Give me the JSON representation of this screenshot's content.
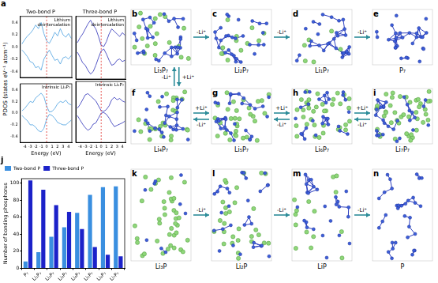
{
  "pdos_panel": "a",
  "pdos_ylabel": "PDOS (states eV⁻¹ atom⁻¹)",
  "chart_data": [
    {
      "type": "line",
      "title": "Two-bond P",
      "annotation": [
        "Lithium",
        "deintercalation"
      ],
      "x": [
        -4.5,
        -4,
        -3.5,
        -3,
        -2.5,
        -2,
        -1.5,
        -1,
        -0.5,
        0,
        0.5,
        1,
        1.5,
        2,
        2.5,
        3,
        3.5,
        4,
        4.5
      ],
      "series": [
        {
          "color": "#4a9fe0",
          "values": [
            0.05,
            0.12,
            0.18,
            0.22,
            0.28,
            0.36,
            0.3,
            0.4,
            0.22,
            0.1,
            0.06,
            0.14,
            0.24,
            0.18,
            0.3,
            0.2,
            0.16,
            0.22,
            0.14
          ]
        },
        {
          "color": "#4a9fe0",
          "values": [
            -0.05,
            -0.1,
            -0.16,
            -0.24,
            -0.26,
            -0.34,
            -0.32,
            -0.38,
            -0.2,
            -0.12,
            -0.05,
            -0.14,
            -0.22,
            -0.2,
            -0.28,
            -0.18,
            -0.16,
            -0.2,
            -0.14
          ]
        }
      ],
      "xlim": [
        -4.8,
        4.6
      ],
      "xticks": [
        -4,
        -3,
        -2,
        -1,
        0,
        1,
        2,
        3,
        4
      ],
      "ylim": [
        -0.5,
        0.5
      ],
      "yticks": [
        -0.4,
        -0.2,
        {
          "value": 0,
          "label": "0.0"
        },
        0.2,
        0.4
      ],
      "fermi_level": 0,
      "tick_labels": "y",
      "grid": false
    },
    {
      "type": "line",
      "title": "Three-bond P",
      "annotation": [
        "Lithium",
        "deintercalation"
      ],
      "x": [
        -4.5,
        -4,
        -3.5,
        -3,
        -2.5,
        -2,
        -1.5,
        -1,
        -0.5,
        0,
        0.5,
        1,
        1.5,
        2,
        2.5,
        3,
        3.5,
        4,
        4.5
      ],
      "series": [
        {
          "color": "#2b2fb8",
          "values": [
            0.08,
            0.16,
            0.22,
            0.3,
            0.38,
            0.44,
            0.36,
            0.3,
            0.18,
            0.04,
            0.02,
            0.1,
            0.22,
            0.3,
            0.26,
            0.22,
            0.18,
            0.24,
            0.2
          ]
        },
        {
          "color": "#2b2fb8",
          "values": [
            -0.07,
            -0.15,
            -0.24,
            -0.28,
            -0.36,
            -0.42,
            -0.38,
            -0.28,
            -0.16,
            -0.05,
            -0.02,
            -0.1,
            -0.2,
            -0.28,
            -0.26,
            -0.2,
            -0.18,
            -0.22,
            -0.2
          ]
        }
      ],
      "xlim": [
        -4.8,
        4.6
      ],
      "xticks": [
        -4,
        -3,
        -2,
        -1,
        0,
        1,
        2,
        3,
        4
      ],
      "ylim": [
        -0.5,
        0.5
      ],
      "yticks": [
        -0.4,
        -0.2,
        {
          "value": 0,
          "label": "0.0"
        },
        0.2,
        0.4
      ],
      "fermi_level": 0,
      "tick_labels": false,
      "grid": false
    },
    {
      "type": "line",
      "xlabel": "Energy (eV)",
      "annotation": [
        "Intrinsic Li₃P₇"
      ],
      "x": [
        -4.5,
        -4,
        -3.5,
        -3,
        -2.5,
        -2,
        -1.5,
        -1,
        -0.5,
        0,
        0.5,
        1,
        1.5,
        2,
        2.5,
        3,
        3.5,
        4,
        4.5
      ],
      "series": [
        {
          "color": "#4a9fe0",
          "values": [
            0.04,
            0.08,
            0.14,
            0.2,
            0.18,
            0.26,
            0.3,
            0.34,
            0.28,
            0.12,
            0.02,
            0.03,
            0.08,
            0.16,
            0.2,
            0.18,
            0.22,
            0.16,
            0.14
          ]
        },
        {
          "color": "#4a9fe0",
          "values": [
            -0.04,
            -0.09,
            -0.13,
            -0.2,
            -0.2,
            -0.24,
            -0.3,
            -0.32,
            -0.26,
            -0.1,
            -0.02,
            -0.04,
            -0.09,
            -0.16,
            -0.18,
            -0.2,
            -0.2,
            -0.16,
            -0.12
          ]
        }
      ],
      "xlim": [
        -4.8,
        4.6
      ],
      "xticks": [
        -4,
        -3,
        -2,
        -1,
        0,
        1,
        2,
        3,
        4
      ],
      "ylim": [
        -0.5,
        0.5
      ],
      "yticks": [
        -0.4,
        -0.2,
        {
          "value": 0,
          "label": "0.0"
        },
        0.2,
        0.4
      ],
      "fermi_level": 0,
      "tick_labels": true,
      "grid": false
    },
    {
      "type": "line",
      "xlabel": "Energy (eV)",
      "annotation": [
        "Intrinsic Li₃P₇"
      ],
      "x": [
        -4.5,
        -4,
        -3.5,
        -3,
        -2.5,
        -2,
        -1.5,
        -1,
        -0.5,
        0,
        0.5,
        1,
        1.5,
        2,
        2.5,
        3,
        3.5,
        4,
        4.5
      ],
      "series": [
        {
          "color": "#2b2fb8",
          "values": [
            0.06,
            0.12,
            0.2,
            0.28,
            0.3,
            0.26,
            0.22,
            0.18,
            0.1,
            0.02,
            0.01,
            0.04,
            0.1,
            0.2,
            0.24,
            0.2,
            0.22,
            0.18,
            0.16
          ]
        },
        {
          "color": "#2b2fb8",
          "values": [
            -0.06,
            -0.13,
            -0.2,
            -0.26,
            -0.3,
            -0.27,
            -0.2,
            -0.18,
            -0.1,
            -0.02,
            -0.01,
            -0.04,
            -0.1,
            -0.18,
            -0.24,
            -0.22,
            -0.2,
            -0.18,
            -0.15
          ]
        }
      ],
      "xlim": [
        -4.8,
        4.6
      ],
      "xticks": [
        -4,
        -3,
        -2,
        -1,
        0,
        1,
        2,
        3,
        4
      ],
      "ylim": [
        -0.5,
        0.5
      ],
      "yticks": [
        -0.4,
        -0.2,
        {
          "value": 0,
          "label": "0.0"
        },
        0.2,
        0.4
      ],
      "fermi_level": 0,
      "tick_labels": "x",
      "grid": false
    },
    {
      "type": "bar",
      "panel": "j",
      "ylabel": "Number of bonding phosphorus",
      "categories": [
        "P₇",
        "Li₁P₇",
        "Li₂P₇",
        "Li₃P₇",
        "Li₄P₇",
        "Li₅P₇",
        "Li₆P₇",
        "Li₇P₇"
      ],
      "series": [
        {
          "name": "Two-bond P",
          "color": "#3a8fe0",
          "values": [
            8,
            19,
            37,
            48,
            65,
            86,
            95,
            96
          ]
        },
        {
          "name": "Three-bond P",
          "color": "#1c22c9",
          "values": [
            103,
            92,
            74,
            66,
            46,
            25,
            16,
            14
          ]
        }
      ],
      "ylim": [
        0,
        105
      ],
      "yticks": [
        0,
        20,
        40,
        60,
        80,
        100
      ],
      "legend": "upper left",
      "grid": false
    }
  ],
  "structures": [
    {
      "panel": "b",
      "formula": "Li₃P₇"
    },
    {
      "panel": "c",
      "formula": "Li₂P₇"
    },
    {
      "panel": "d",
      "formula": "Li₁P₇"
    },
    {
      "panel": "e",
      "formula": "P₇"
    },
    {
      "panel": "f",
      "formula": "Li₄P₇"
    },
    {
      "panel": "g",
      "formula": "Li₅P₇"
    },
    {
      "panel": "h",
      "formula": "Li₆P₇"
    },
    {
      "panel": "i",
      "formula": "Li₇P₇"
    },
    {
      "panel": "k",
      "formula": "Li₃P"
    },
    {
      "panel": "l",
      "formula": "Li₂P"
    },
    {
      "panel": "m",
      "formula": "LiP"
    },
    {
      "panel": "n",
      "formula": "P"
    }
  ],
  "arrows": [
    {
      "from": "b",
      "to": "c",
      "label": "-Li⁺"
    },
    {
      "from": "c",
      "to": "d",
      "label": "-Li⁺"
    },
    {
      "from": "d",
      "to": "e",
      "label": "-Li⁺"
    },
    {
      "from": "b",
      "to": "f",
      "label": "+Li⁺"
    },
    {
      "from": "f",
      "to": "b",
      "label": "-Li⁺"
    },
    {
      "from": "f",
      "to": "g",
      "label": "+Li⁺"
    },
    {
      "from": "g",
      "to": "f",
      "label": "-Li⁺"
    },
    {
      "from": "g",
      "to": "h",
      "label": "+Li⁺"
    },
    {
      "from": "h",
      "to": "g",
      "label": "-Li⁺"
    },
    {
      "from": "h",
      "to": "i",
      "label": "+Li⁺"
    },
    {
      "from": "i",
      "to": "h",
      "label": "-Li⁺"
    },
    {
      "from": "k",
      "to": "l",
      "label": "-Li⁺"
    },
    {
      "from": "l",
      "to": "m",
      "label": "-Li⁺"
    },
    {
      "from": "m",
      "to": "n",
      "label": "-Li⁺"
    }
  ]
}
